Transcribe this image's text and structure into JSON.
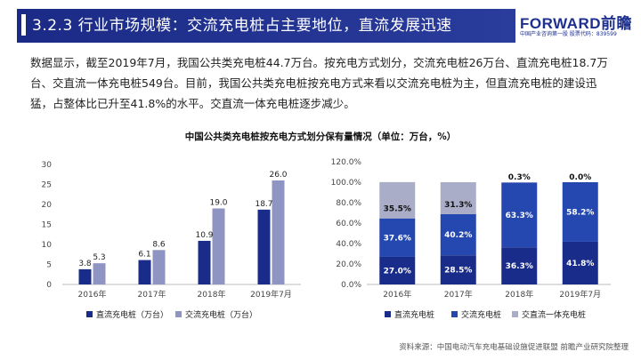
{
  "header": {
    "title": "3.2.3 行业市场规模：交流充电桩占主要地位，直流发展迅速",
    "logo_main": "FORWARD前瞻",
    "logo_sub": "中国产业咨询第一股  股票代码：839599"
  },
  "paragraph": "数据显示，截至2019年7月，我国公共类充电桩44.7万台。按充电方式划分，交流充电桩26万台、直流充电桩18.7万台、交直流一体充电桩549台。目前，我国公共类充电桩按充电方式来看以交流充电桩为主，但直流充电桩的建设迅猛，占整体比已升至41.8%的水平。交直流一体充电桩逐步减少。",
  "colors": {
    "header_bg": "#1f2f8c",
    "dc": "#1a2c8a",
    "ac": "#8f95c2",
    "ac_pct": "#2448b0",
    "hybrid": "#a9adc8"
  },
  "chart_data": [
    {
      "type": "bar",
      "title": "中国公共类充电桩按充电方式划分保有量情况（单位：万台，%）",
      "categories": [
        "2016年",
        "2017年",
        "2018年",
        "2019年7月"
      ],
      "series": [
        {
          "name": "直流充电桩（万台）",
          "values": [
            3.8,
            6.1,
            10.9,
            18.7
          ]
        },
        {
          "name": "交流充电桩（万台）",
          "values": [
            5.3,
            8.6,
            19.0,
            26.0
          ]
        }
      ],
      "value_labels": {
        "dc": [
          "3.8",
          "6.1",
          "10.9",
          "18.7"
        ],
        "ac": [
          "5.3",
          "8.6",
          "19.0",
          "26.0"
        ]
      },
      "ylim": [
        0,
        30
      ],
      "yticks": [
        "0",
        "5",
        "10",
        "15",
        "20",
        "25",
        "30"
      ],
      "legend": "bottom",
      "grid": false
    },
    {
      "type": "bar",
      "stacked": true,
      "categories": [
        "2016年",
        "2017年",
        "2018年",
        "2019年7月"
      ],
      "series": [
        {
          "name": "直流充电桩",
          "values": [
            27.0,
            28.5,
            36.3,
            41.8
          ]
        },
        {
          "name": "交流充电桩",
          "values": [
            37.6,
            40.2,
            63.3,
            58.2
          ]
        },
        {
          "name": "交直流一体充电桩",
          "values": [
            35.5,
            31.3,
            0.3,
            0.0
          ]
        }
      ],
      "value_labels": {
        "dc": [
          "27.0%",
          "28.5%",
          "36.3%",
          "41.8%"
        ],
        "ac": [
          "37.6%",
          "40.2%",
          "63.3%",
          "58.2%"
        ],
        "hybrid": [
          "35.5%",
          "31.3%",
          "0.3%",
          "0.0%"
        ]
      },
      "ylim": [
        0,
        120
      ],
      "yticks": [
        "0.0%",
        "20.0%",
        "40.0%",
        "60.0%",
        "80.0%",
        "100.0%",
        "120.0%"
      ],
      "legend": "bottom",
      "grid": false
    }
  ],
  "source": "资料来源：中国电动汽车充电基础设施促进联盟 前瞻产业研究院整理"
}
